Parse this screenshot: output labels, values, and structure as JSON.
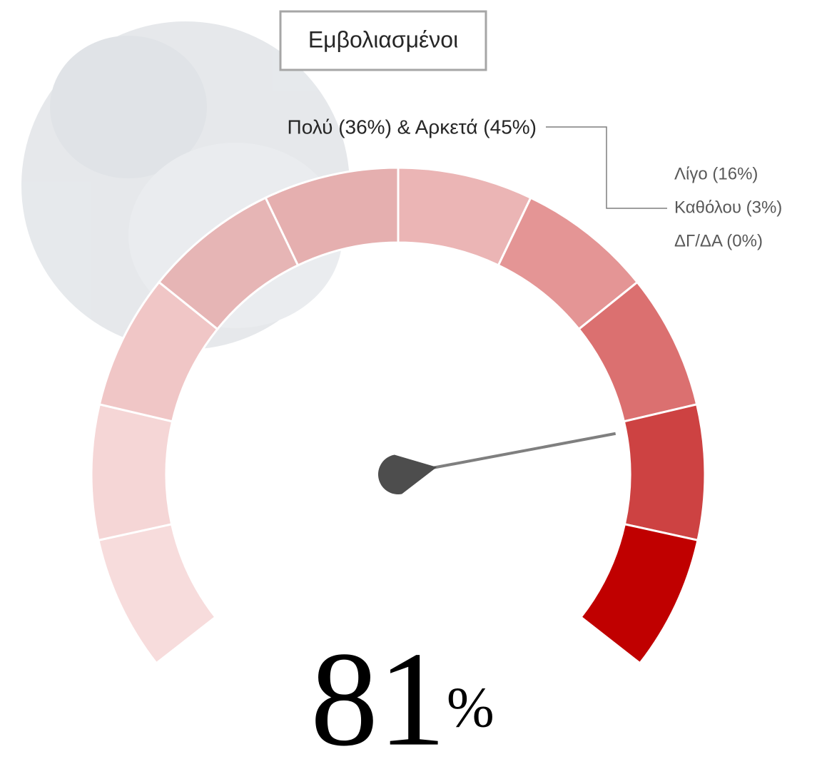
{
  "chart_data": {
    "type": "gauge",
    "title": "Εμβολιασμένοι",
    "annotation": "Πολύ (36%) & Αρκετά (45%)",
    "side_labels": [
      "Λίγο (16%)",
      "Καθόλου (3%)",
      "ΔΓ/ΔΑ (0%)"
    ],
    "value": 81,
    "unit": "%",
    "ylim": [
      0,
      100
    ],
    "band_colors": [
      "#f7dcdc",
      "#f5d6d6",
      "#f0c6c6",
      "#e6b5b5",
      "#e5afaf",
      "#ebb5b5",
      "#e49595",
      "#db7070",
      "#cd4242",
      "#c00000"
    ],
    "needle_color": "#7f7f7f"
  }
}
